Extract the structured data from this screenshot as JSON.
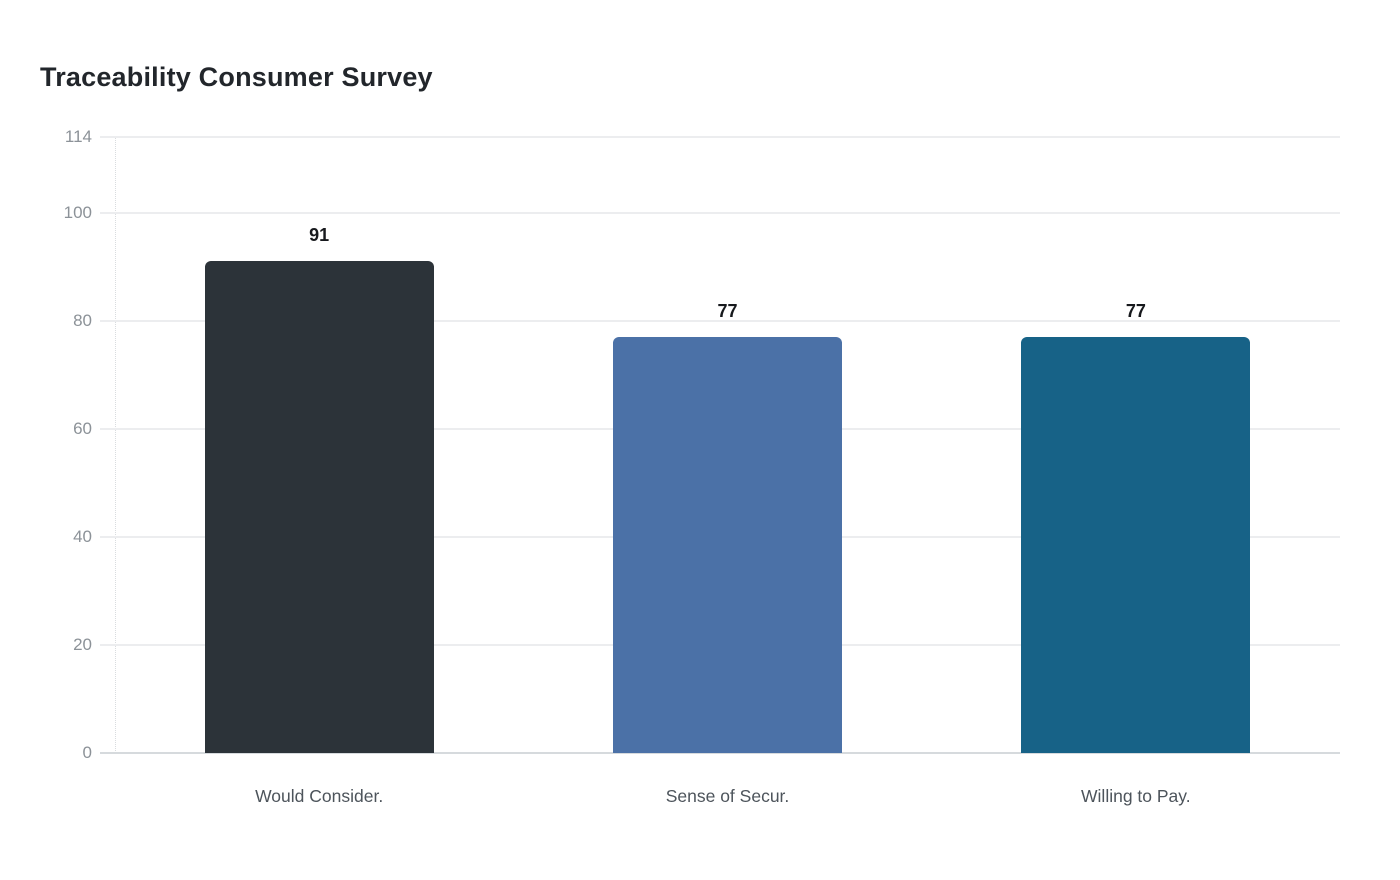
{
  "page": {
    "background": "#ffffff"
  },
  "header": {
    "title": "Traceability Consumer Survey"
  },
  "chart_data": {
    "type": "bar",
    "title": "Traceability Consumer Survey",
    "categories": [
      "Would Consider.",
      "Sense of Secur.",
      "Willing to Pay."
    ],
    "values": [
      91,
      77,
      77
    ],
    "value_labels": [
      "91",
      "77",
      "77"
    ],
    "bar_colors": [
      "#2c3339",
      "#4b71a7",
      "#176287"
    ],
    "yticks": [
      114,
      100,
      80,
      60,
      40,
      20,
      0
    ],
    "ylim": [
      0,
      114
    ],
    "xlabel": "",
    "ylabel": "",
    "grid": true,
    "legend_position": "none",
    "style_colors": {
      "title": "#22262b",
      "value_label": "#17191d",
      "y_tick_label": "#8c9298",
      "x_category_label": "#4d545b",
      "gridline": "#ecedef",
      "baseline": "#d6dadd"
    }
  }
}
